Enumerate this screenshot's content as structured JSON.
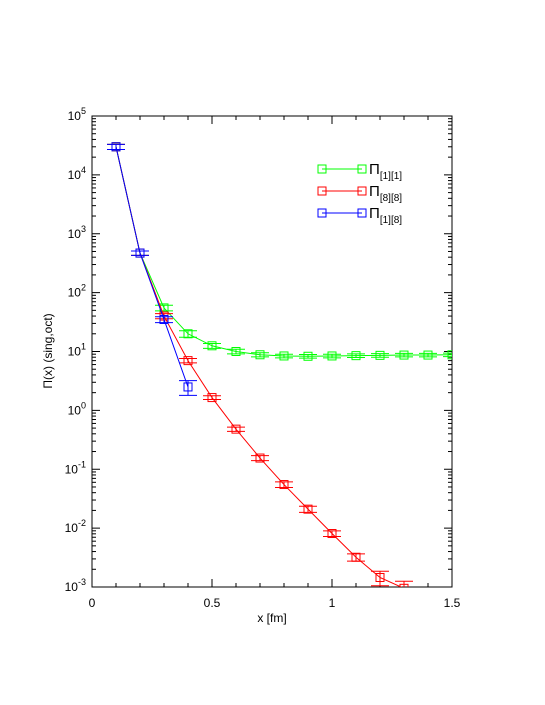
{
  "chart_data": {
    "type": "line",
    "title": "",
    "xlabel": "x [fm]",
    "ylabel": "Π(x) (sing,oct)",
    "xlim": [
      0,
      1.5
    ],
    "ylim": [
      0.001,
      100000
    ],
    "yscale": "log",
    "grid": false,
    "legend_position": "top-right",
    "x_ticks": [
      {
        "value": 0,
        "label": "0"
      },
      {
        "value": 0.5,
        "label": "0.5"
      },
      {
        "value": 1,
        "label": "1"
      },
      {
        "value": 1.5,
        "label": "1.5"
      }
    ],
    "y_ticks": [
      {
        "value": 0.001,
        "base": "10",
        "exp": "-3"
      },
      {
        "value": 0.01,
        "base": "10",
        "exp": "-2"
      },
      {
        "value": 0.1,
        "base": "10",
        "exp": "-1"
      },
      {
        "value": 1,
        "base": "10",
        "exp": "0"
      },
      {
        "value": 10,
        "base": "10",
        "exp": "1"
      },
      {
        "value": 100,
        "base": "10",
        "exp": "2"
      },
      {
        "value": 1000,
        "base": "10",
        "exp": "3"
      },
      {
        "value": 10000,
        "base": "10",
        "exp": "4"
      },
      {
        "value": 100000,
        "base": "10",
        "exp": "5"
      }
    ],
    "series": [
      {
        "name": "Π[1][1]",
        "name_base": "Π",
        "name_sub": "[1][1]",
        "color": "#00ff00",
        "x": [
          0.1,
          0.2,
          0.3,
          0.4,
          0.5,
          0.6,
          0.7,
          0.8,
          0.9,
          1.0,
          1.1,
          1.2,
          1.3,
          1.4,
          1.5
        ],
        "y": [
          30000,
          470,
          55,
          20,
          12.5,
          10,
          8.8,
          8.4,
          8.3,
          8.4,
          8.5,
          8.6,
          8.7,
          8.7,
          8.8
        ],
        "err": [
          3000,
          40,
          6,
          2.5,
          1.2,
          0.9,
          0.7,
          0.6,
          0.6,
          0.6,
          0.6,
          0.6,
          0.6,
          0.6,
          0.6
        ]
      },
      {
        "name": "Π[8][8]",
        "name_base": "Π",
        "name_sub": "[8][8]",
        "color": "#ff0000",
        "x": [
          0.1,
          0.2,
          0.3,
          0.4,
          0.5,
          0.6,
          0.7,
          0.8,
          0.9,
          1.0,
          1.1,
          1.2,
          1.3
        ],
        "y": [
          30000,
          470,
          40,
          7,
          1.65,
          0.48,
          0.155,
          0.055,
          0.021,
          0.0081,
          0.0032,
          0.00145,
          0.00095
        ],
        "err": [
          3000,
          40,
          4,
          0.6,
          0.12,
          0.04,
          0.015,
          0.006,
          0.0025,
          0.0009,
          0.00045,
          0.0004,
          0.0003
        ]
      },
      {
        "name": "Π[1][8]",
        "name_base": "Π",
        "name_sub": "[1][8]",
        "color": "#0000ff",
        "x": [
          0.1,
          0.2,
          0.3,
          0.4
        ],
        "y": [
          30000,
          470,
          35,
          2.5
        ],
        "err": [
          3000,
          40,
          4,
          0.7
        ]
      }
    ]
  }
}
